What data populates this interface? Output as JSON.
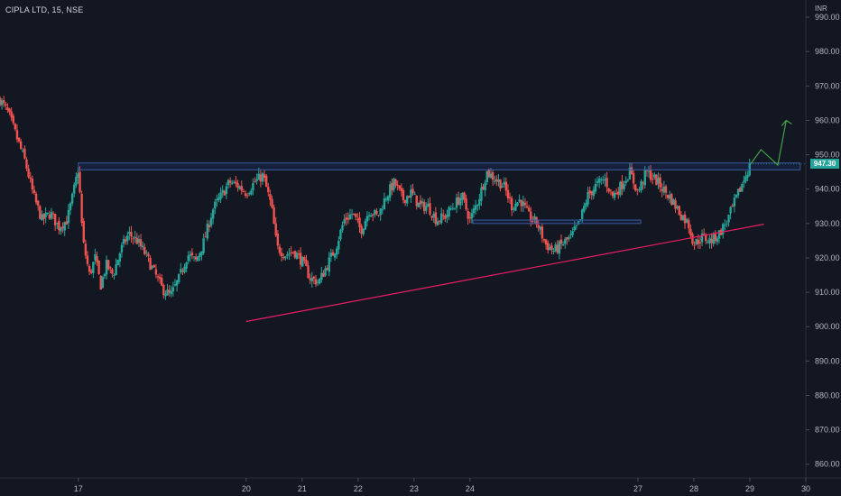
{
  "header": {
    "title": "CIPLA LTD, 15, NSE"
  },
  "axis": {
    "unit": "INR",
    "last_price_label": "947.30"
  },
  "colors": {
    "background": "#131722",
    "up": "#26a69a",
    "down": "#ef5350",
    "resistance": "#3d5a99",
    "support_trend": "#e91e63",
    "projection": "#43a047"
  },
  "chart_data": {
    "type": "candlestick",
    "title": "CIPLA LTD, 15, NSE",
    "ylabel": "INR",
    "ylim": [
      856,
      995
    ],
    "xlim": [
      15.6,
      30
    ],
    "y_ticks": [
      "990.00",
      "980.00",
      "970.00",
      "960.00",
      "950.00",
      "940.00",
      "930.00",
      "920.00",
      "910.00",
      "900.00",
      "890.00",
      "880.00",
      "870.00",
      "860.00"
    ],
    "x_ticks": [
      {
        "label": "17",
        "pos": 17
      },
      {
        "label": "20",
        "pos": 20
      },
      {
        "label": "21",
        "pos": 21
      },
      {
        "label": "22",
        "pos": 22
      },
      {
        "label": "23",
        "pos": 23
      },
      {
        "label": "24",
        "pos": 24
      },
      {
        "label": "27",
        "pos": 27
      },
      {
        "label": "28",
        "pos": 28
      },
      {
        "label": "29",
        "pos": 29
      },
      {
        "label": "30",
        "pos": 30
      }
    ],
    "last_price": 947.3,
    "close_path": [
      [
        15.6,
        966
      ],
      [
        15.75,
        962
      ],
      [
        15.9,
        955
      ],
      [
        16.05,
        948
      ],
      [
        16.2,
        938
      ],
      [
        16.35,
        931
      ],
      [
        16.5,
        933
      ],
      [
        16.65,
        929
      ],
      [
        16.8,
        931
      ],
      [
        16.9,
        938
      ],
      [
        17.0,
        946
      ],
      [
        17.08,
        925
      ],
      [
        17.2,
        915
      ],
      [
        17.3,
        920
      ],
      [
        17.4,
        912
      ],
      [
        17.5,
        918
      ],
      [
        17.62,
        915
      ],
      [
        17.75,
        922
      ],
      [
        17.9,
        927
      ],
      [
        18.05,
        925
      ],
      [
        18.2,
        921
      ],
      [
        18.35,
        916
      ],
      [
        18.5,
        911
      ],
      [
        18.65,
        909
      ],
      [
        18.8,
        914
      ],
      [
        18.95,
        921
      ],
      [
        19.1,
        919
      ],
      [
        19.25,
        925
      ],
      [
        19.4,
        934
      ],
      [
        19.55,
        938
      ],
      [
        19.7,
        942
      ],
      [
        19.85,
        941
      ],
      [
        20.0,
        939
      ],
      [
        20.15,
        942
      ],
      [
        20.3,
        944
      ],
      [
        20.45,
        935
      ],
      [
        20.55,
        923
      ],
      [
        20.7,
        921
      ],
      [
        20.85,
        922
      ],
      [
        21.0,
        919
      ],
      [
        21.15,
        914
      ],
      [
        21.3,
        913
      ],
      [
        21.45,
        918
      ],
      [
        21.6,
        923
      ],
      [
        21.75,
        931
      ],
      [
        21.9,
        933
      ],
      [
        22.05,
        928
      ],
      [
        22.2,
        934
      ],
      [
        22.35,
        932
      ],
      [
        22.5,
        938
      ],
      [
        22.65,
        942
      ],
      [
        22.8,
        937
      ],
      [
        22.95,
        939
      ],
      [
        23.1,
        935
      ],
      [
        23.25,
        935
      ],
      [
        23.4,
        931
      ],
      [
        23.55,
        932
      ],
      [
        23.7,
        935
      ],
      [
        23.85,
        938
      ],
      [
        24.0,
        931
      ],
      [
        24.15,
        937
      ],
      [
        24.3,
        945
      ],
      [
        24.45,
        943
      ],
      [
        24.6,
        941
      ],
      [
        24.75,
        935
      ],
      [
        24.9,
        937
      ],
      [
        25.05,
        932
      ],
      [
        25.2,
        930
      ],
      [
        25.35,
        924
      ],
      [
        25.5,
        922
      ],
      [
        25.65,
        924
      ],
      [
        25.8,
        926
      ],
      [
        25.95,
        930
      ],
      [
        26.1,
        938
      ],
      [
        26.25,
        941
      ],
      [
        26.4,
        943
      ],
      [
        26.55,
        938
      ],
      [
        26.7,
        941
      ],
      [
        26.85,
        945
      ],
      [
        27.0,
        939
      ],
      [
        27.15,
        945
      ],
      [
        27.3,
        943
      ],
      [
        27.45,
        940
      ],
      [
        27.6,
        937
      ],
      [
        27.75,
        933
      ],
      [
        27.9,
        930
      ],
      [
        28.0,
        924
      ],
      [
        28.15,
        926
      ],
      [
        28.3,
        925
      ],
      [
        28.45,
        927
      ],
      [
        28.6,
        931
      ],
      [
        28.75,
        937
      ],
      [
        28.9,
        943
      ],
      [
        29.0,
        947
      ]
    ],
    "annotations": {
      "resistance_zone": {
        "x": [
          17.0,
          29.9
        ],
        "y": [
          945.6,
          947.6
        ]
      },
      "inner_box": {
        "x": [
          24.05,
          27.05
        ],
        "y": [
          930.0,
          931.0
        ]
      },
      "trend_line": {
        "x": [
          20.0,
          29.25
        ],
        "y": [
          901.5,
          929.8
        ]
      },
      "projection": [
        [
          29.2,
          951.5
        ],
        [
          29.5,
          947.0
        ],
        [
          29.65,
          960.0
        ]
      ]
    }
  }
}
